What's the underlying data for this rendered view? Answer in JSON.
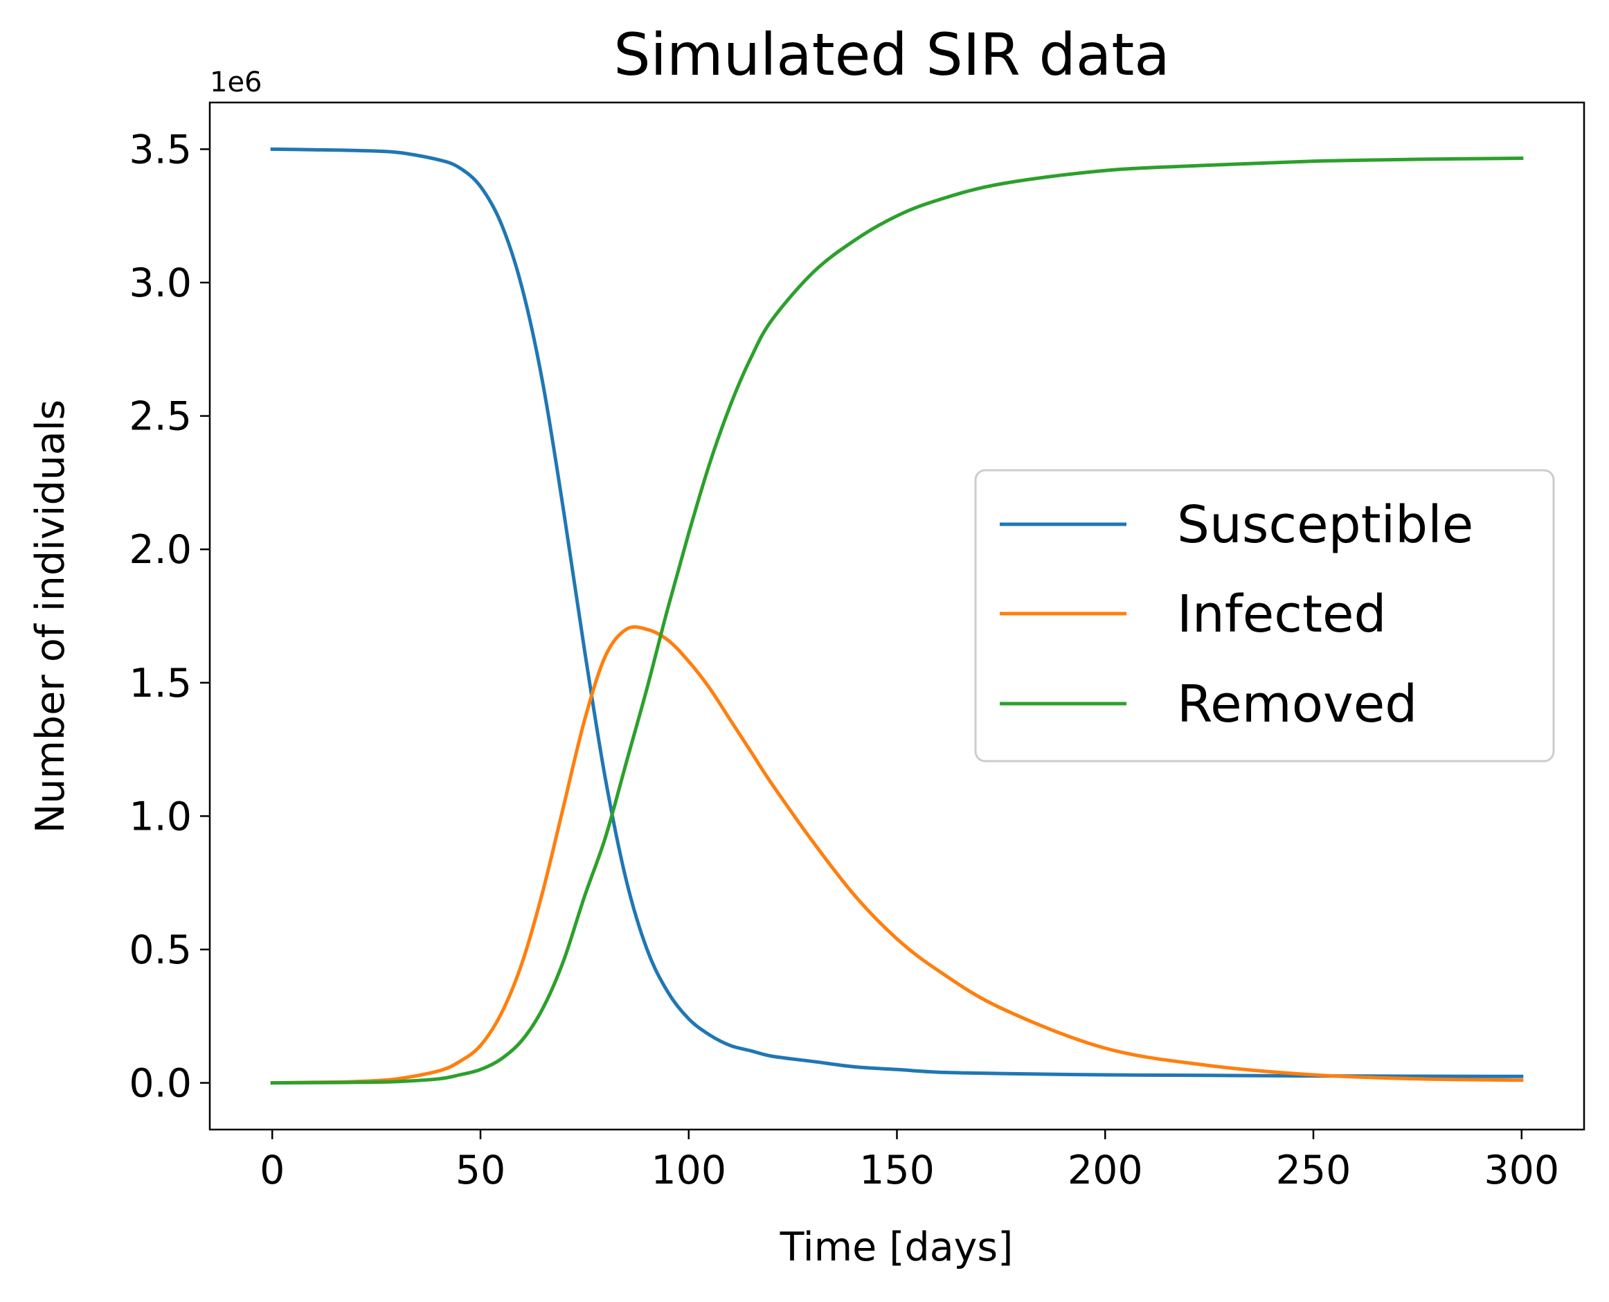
{
  "chart_data": {
    "type": "line",
    "title": "Simulated SIR data",
    "xlabel": "Time [days]",
    "ylabel": "Number of individuals",
    "y_offset_label": "1e6",
    "xlim": [
      -15,
      315
    ],
    "ylim": [
      -0.175,
      3.675
    ],
    "y_scale_factor": 1000000,
    "x_ticks": [
      0,
      50,
      100,
      150,
      200,
      250,
      300
    ],
    "x_tick_labels": [
      "0",
      "50",
      "100",
      "150",
      "200",
      "250",
      "300"
    ],
    "y_ticks": [
      0,
      0.5,
      1.0,
      1.5,
      2.0,
      2.5,
      3.0,
      3.5
    ],
    "y_tick_labels": [
      "0.0",
      "0.5",
      "1.0",
      "1.5",
      "2.0",
      "2.5",
      "3.0",
      "3.5"
    ],
    "grid": false,
    "legend": {
      "position": "center-right"
    },
    "x": [
      0,
      10,
      20,
      30,
      40,
      45,
      50,
      55,
      60,
      65,
      70,
      75,
      80,
      85,
      90,
      95,
      100,
      105,
      110,
      115,
      120,
      130,
      140,
      150,
      160,
      175,
      200,
      225,
      250,
      275,
      300
    ],
    "series": [
      {
        "name": "Susceptible",
        "color": "#1f77b4",
        "values": [
          3.5,
          3.498,
          3.495,
          3.488,
          3.46,
          3.43,
          3.36,
          3.22,
          2.98,
          2.62,
          2.14,
          1.62,
          1.14,
          0.76,
          0.5,
          0.34,
          0.24,
          0.18,
          0.14,
          0.12,
          0.1,
          0.08,
          0.06,
          0.05,
          0.04,
          0.035,
          0.03,
          0.028,
          0.026,
          0.025,
          0.024
        ]
      },
      {
        "name": "Infected",
        "color": "#ff7f0e",
        "values": [
          0.0,
          0.002,
          0.005,
          0.015,
          0.045,
          0.08,
          0.14,
          0.26,
          0.45,
          0.72,
          1.04,
          1.36,
          1.6,
          1.7,
          1.7,
          1.66,
          1.58,
          1.48,
          1.36,
          1.24,
          1.12,
          0.9,
          0.7,
          0.54,
          0.42,
          0.28,
          0.13,
          0.065,
          0.03,
          0.015,
          0.01
        ]
      },
      {
        "name": "Removed",
        "color": "#2ca02c",
        "values": [
          0.0,
          0.001,
          0.002,
          0.005,
          0.015,
          0.03,
          0.05,
          0.09,
          0.16,
          0.28,
          0.46,
          0.7,
          0.92,
          1.2,
          1.48,
          1.78,
          2.06,
          2.32,
          2.54,
          2.72,
          2.86,
          3.04,
          3.16,
          3.25,
          3.31,
          3.37,
          3.42,
          3.44,
          3.455,
          3.462,
          3.466
        ]
      }
    ]
  }
}
